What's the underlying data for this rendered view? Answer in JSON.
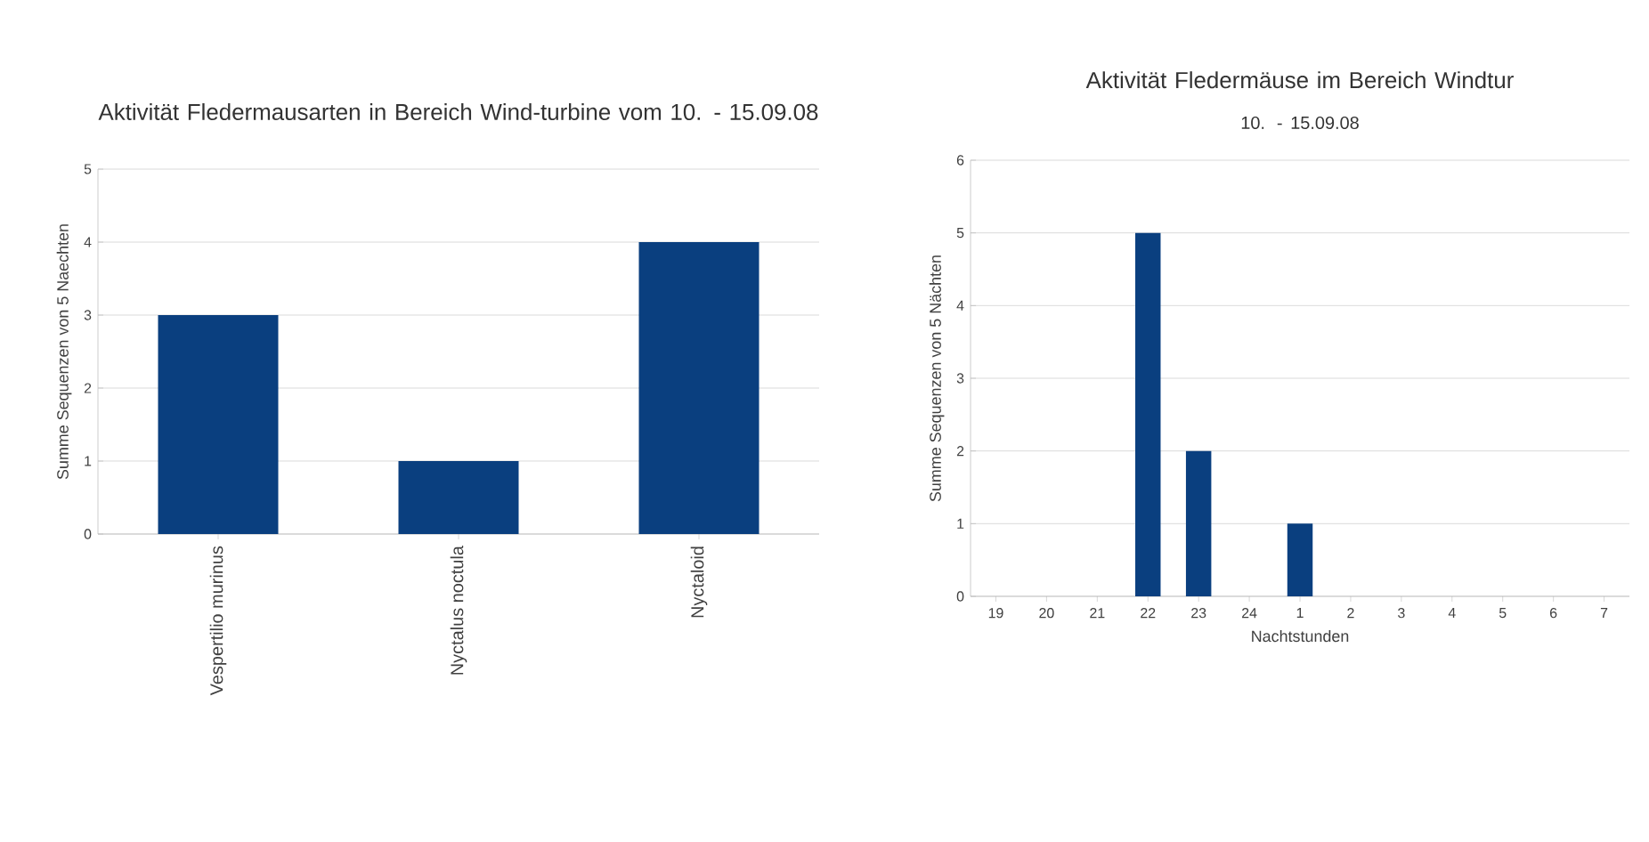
{
  "chart_data": [
    {
      "type": "bar",
      "title": "Aktivität Fledermausarten in Bereich Wind-turbine vom 10. - 15.09.08",
      "ylabel": "Summe Sequenzen von 5 Naechten",
      "categories": [
        "Vespertilio murinus",
        "Nyctalus noctula",
        "Nyctaloid"
      ],
      "values": [
        3,
        1,
        4
      ],
      "color": "#0a3f7f",
      "ylim": [
        0,
        5
      ],
      "yticks": [
        0,
        1,
        2,
        3,
        4,
        5
      ],
      "grid": "y"
    },
    {
      "type": "bar",
      "title": "Aktivität Fledermäuse im Bereich Windtur",
      "subtitle": "10. - 15.09.08",
      "xlabel": "Nachtstunden",
      "ylabel": "Summe Sequenzen von 5 Nächten",
      "categories": [
        "19",
        "20",
        "21",
        "22",
        "23",
        "24",
        "1",
        "2",
        "3",
        "4",
        "5",
        "6",
        "7"
      ],
      "values": [
        0,
        0,
        0,
        5,
        2,
        0,
        1,
        0,
        0,
        0,
        0,
        0,
        0
      ],
      "color": "#0a3f7f",
      "ylim": [
        0,
        6
      ],
      "yticks": [
        0,
        1,
        2,
        3,
        4,
        5,
        6
      ],
      "grid": "y"
    }
  ]
}
